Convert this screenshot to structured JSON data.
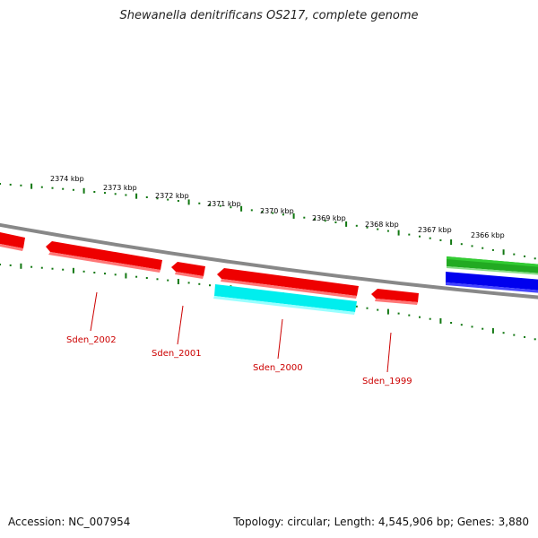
{
  "title": "Shewanella denitrificans OS217, complete genome",
  "footer": {
    "accession": "Accession: NC_007954",
    "summary": "Topology: circular; Length: 4,545,906 bp; Genes: 3,880"
  },
  "colors": {
    "gene_red": "#ee0000",
    "gene_cyan": "#00eeee",
    "gene_green": "#22aa22",
    "gene_blue": "#0000ee",
    "backbone": "#888888",
    "tick_green": "#117711",
    "label_red": "#cc0000"
  },
  "scale_labels": [
    "2374 kbp",
    "2373 kbp",
    "2372 kbp",
    "2371 kbp",
    "2370 kbp",
    "2369 kbp",
    "2368 kbp",
    "2367 kbp",
    "2366 kbp"
  ],
  "gene_labels": [
    "Sden_2002",
    "Sden_2001",
    "Sden_2000",
    "Sden_1999"
  ]
}
